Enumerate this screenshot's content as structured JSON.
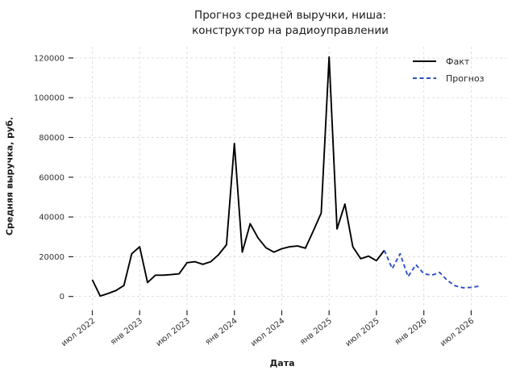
{
  "title": {
    "line1": "Прогноз средней выручки, ниша:",
    "line2": "конструктор на радиоуправлении"
  },
  "legend": {
    "items": [
      {
        "label": "Факт",
        "style": "solid",
        "color": "#000000"
      },
      {
        "label": "Прогноз",
        "style": "dashed",
        "color": "#2b4fc4"
      }
    ]
  },
  "chart_data": {
    "type": "line",
    "title": "Прогноз средней выручки, ниша: конструктор на радиоуправлении",
    "xlabel": "Дата",
    "ylabel": "Средняя выручка, руб.",
    "grid": true,
    "legend_position": "upper right",
    "ylim": [
      -7000,
      126000
    ],
    "y_axis": {
      "ticks": [
        0,
        20000,
        40000,
        60000,
        80000,
        100000,
        120000
      ]
    },
    "x_axis": {
      "unit": "month",
      "ticks": [
        {
          "label": "июл 2022",
          "month_index": 0
        },
        {
          "label": "янв 2023",
          "month_index": 6
        },
        {
          "label": "июл 2023",
          "month_index": 12
        },
        {
          "label": "янв 2024",
          "month_index": 18
        },
        {
          "label": "июл 2024",
          "month_index": 24
        },
        {
          "label": "янв 2025",
          "month_index": 30
        },
        {
          "label": "июл 2025",
          "month_index": 36
        },
        {
          "label": "янв 2026",
          "month_index": 42
        },
        {
          "label": "июл 2026",
          "month_index": 48
        }
      ]
    },
    "series": [
      {
        "key": "fact",
        "name": "Факт",
        "style": "solid",
        "color": "#000000",
        "start_index": 0,
        "connects_to_previous": false,
        "points": [
          {
            "month": "июл 2022",
            "value": 8400
          },
          {
            "month": "авг 2022",
            "value": 200
          },
          {
            "month": "сен 2022",
            "value": 1500
          },
          {
            "month": "окт 2022",
            "value": 3000
          },
          {
            "month": "ноя 2022",
            "value": 5500
          },
          {
            "month": "дек 2022",
            "value": 21500
          },
          {
            "month": "янв 2023",
            "value": 25000
          },
          {
            "month": "фев 2023",
            "value": 7000
          },
          {
            "month": "мар 2023",
            "value": 10700
          },
          {
            "month": "апр 2023",
            "value": 10700
          },
          {
            "month": "май 2023",
            "value": 11000
          },
          {
            "month": "июн 2023",
            "value": 11400
          },
          {
            "month": "июл 2023",
            "value": 17000
          },
          {
            "month": "авг 2023",
            "value": 17500
          },
          {
            "month": "сен 2023",
            "value": 16200
          },
          {
            "month": "окт 2023",
            "value": 17500
          },
          {
            "month": "ноя 2023",
            "value": 21000
          },
          {
            "month": "дек 2023",
            "value": 26000
          },
          {
            "month": "янв 2024",
            "value": 77000
          },
          {
            "month": "фев 2024",
            "value": 22300
          },
          {
            "month": "мар 2024",
            "value": 36600
          },
          {
            "month": "апр 2024",
            "value": 29400
          },
          {
            "month": "май 2024",
            "value": 24500
          },
          {
            "month": "июн 2024",
            "value": 22300
          },
          {
            "month": "июл 2024",
            "value": 24000
          },
          {
            "month": "авг 2024",
            "value": 25000
          },
          {
            "month": "сен 2024",
            "value": 25400
          },
          {
            "month": "окт 2024",
            "value": 24300
          },
          {
            "month": "ноя 2024",
            "value": 33000
          },
          {
            "month": "дек 2024",
            "value": 42000
          },
          {
            "month": "янв 2025",
            "value": 120500
          },
          {
            "month": "фев 2025",
            "value": 34000
          },
          {
            "month": "мар 2025",
            "value": 46500
          },
          {
            "month": "апр 2025",
            "value": 25000
          },
          {
            "month": "май 2025",
            "value": 19000
          },
          {
            "month": "июн 2025",
            "value": 20300
          },
          {
            "month": "июл 2025",
            "value": 18000
          },
          {
            "month": "авг 2025",
            "value": 23200
          }
        ]
      },
      {
        "key": "forecast",
        "name": "Прогноз",
        "style": "dashed",
        "color": "#2b4fc4",
        "start_index": 38,
        "connects_to_previous": true,
        "points": [
          {
            "month": "сен 2025",
            "value": 14000
          },
          {
            "month": "окт 2025",
            "value": 21500
          },
          {
            "month": "ноя 2025",
            "value": 10000
          },
          {
            "month": "дек 2025",
            "value": 16000
          },
          {
            "month": "янв 2026",
            "value": 11400
          },
          {
            "month": "фев 2026",
            "value": 10700
          },
          {
            "month": "мар 2026",
            "value": 12100
          },
          {
            "month": "апр 2026",
            "value": 8000
          },
          {
            "month": "май 2026",
            "value": 5300
          },
          {
            "month": "июн 2026",
            "value": 4400
          },
          {
            "month": "июл 2026",
            "value": 4600
          },
          {
            "month": "авг 2026",
            "value": 5200
          }
        ]
      }
    ]
  }
}
